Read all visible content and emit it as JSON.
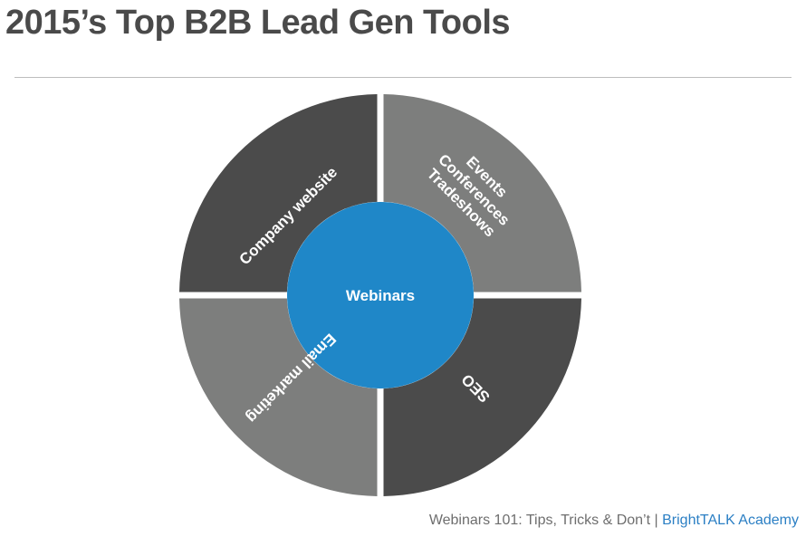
{
  "title": "2015’s Top B2B Lead Gen Tools",
  "diagram": {
    "center": "Webinars",
    "quadrants": {
      "top_left": [
        "Company website"
      ],
      "top_right": [
        "Events",
        "Conferences",
        "Tradeshows"
      ],
      "bottom_left": [
        "Email marketing"
      ],
      "bottom_right": [
        "SEO"
      ]
    },
    "colors": {
      "dark": "#4b4b4b",
      "light": "#7d7e7d",
      "center": "#1f87c8",
      "text": "#ffffff"
    }
  },
  "footer": {
    "text": "Webinars 101: Tips, Tricks & Don’t | ",
    "brand": "BrightTALK Academy"
  }
}
